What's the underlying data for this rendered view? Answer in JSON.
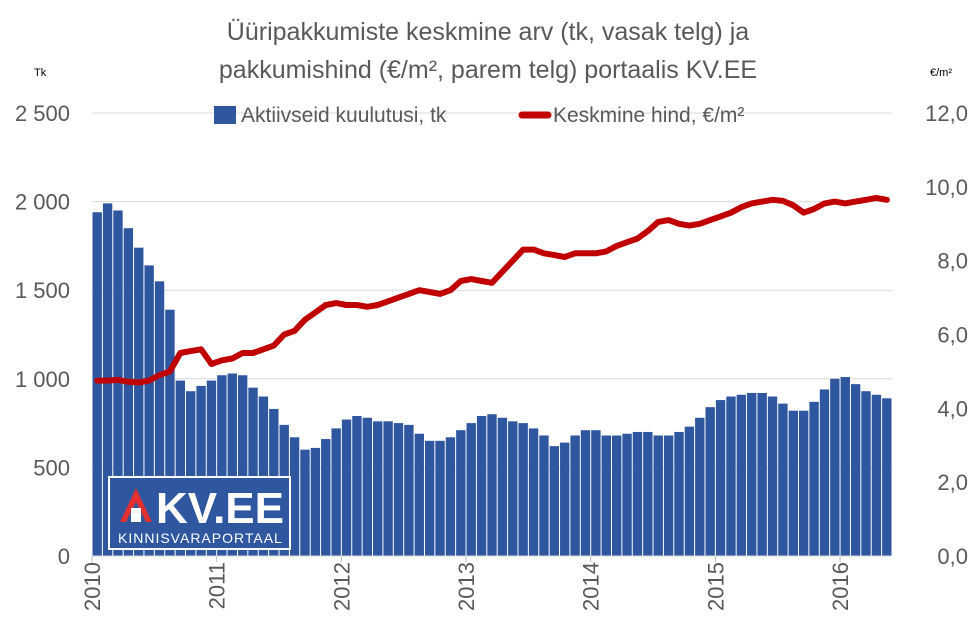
{
  "title_lines": [
    "Üüripakkumiste keskmine arv (tk, vasak telg) ja",
    "pakkumishind (€/m², parem telg) portaalis KV.EE"
  ],
  "left_axis_unit": "Tk",
  "right_axis_unit": "€/m²",
  "legend": {
    "bars_label": "Aktiivseid kuulutusi, tk",
    "line_label": "Keskmine hind, €/m²"
  },
  "logo": {
    "brand": "KV.EE",
    "tagline": "KINNISVARAPORTAAL"
  },
  "colors": {
    "bars": "#2E57A0",
    "line": "#C00000",
    "gridline": "#D9D9D9",
    "logo_bg": "#2E57A0",
    "logo_accent": "#E03030"
  },
  "chart_data": {
    "type": "bar",
    "combo": "bar + line (dual axis)",
    "title": "Üüripakkumiste keskmine arv (tk, vasak telg) ja pakkumishind (€/m², parem telg) portaalis KV.EE",
    "x_start": "2010-01",
    "x_end": "2016-07",
    "x_tick_labels": [
      "2010",
      "2011",
      "2012",
      "2013",
      "2014",
      "2015",
      "2016"
    ],
    "left_axis": {
      "ylim": [
        0,
        2500
      ],
      "ticks": [
        0,
        500,
        1000,
        1500,
        2000,
        2500
      ],
      "tick_labels": [
        "0",
        "500",
        "1 000",
        "1 500",
        "2 000",
        "2 500"
      ]
    },
    "right_axis": {
      "ylim": [
        0,
        12
      ],
      "ticks": [
        0,
        2,
        4,
        6,
        8,
        10,
        12
      ],
      "tick_labels": [
        "0,0",
        "2,0",
        "4,0",
        "6,0",
        "8,0",
        "10,0",
        "12,0"
      ]
    },
    "grid": true,
    "legend_position": "top",
    "series": [
      {
        "name": "Aktiivseid kuulutusi, tk",
        "kind": "bar",
        "axis": "left",
        "values": [
          1940,
          1990,
          1950,
          1850,
          1740,
          1640,
          1550,
          1390,
          990,
          930,
          960,
          990,
          1020,
          1030,
          1020,
          950,
          900,
          830,
          740,
          670,
          600,
          610,
          660,
          720,
          770,
          790,
          780,
          760,
          760,
          750,
          740,
          690,
          650,
          650,
          670,
          710,
          750,
          790,
          800,
          780,
          760,
          750,
          720,
          680,
          620,
          640,
          680,
          710,
          710,
          680,
          680,
          690,
          700,
          700,
          680,
          680,
          700,
          730,
          780,
          840,
          880,
          900,
          910,
          920,
          920,
          900,
          860,
          820,
          820,
          870,
          940,
          1000,
          1010,
          970,
          930,
          910,
          890
        ]
      },
      {
        "name": "Keskmine hind, €/m²",
        "kind": "line",
        "axis": "right",
        "values": [
          4.75,
          4.75,
          4.77,
          4.72,
          4.7,
          4.75,
          4.9,
          5.0,
          5.5,
          5.55,
          5.6,
          5.2,
          5.3,
          5.35,
          5.5,
          5.5,
          5.6,
          5.7,
          6.0,
          6.1,
          6.4,
          6.6,
          6.8,
          6.85,
          6.8,
          6.8,
          6.75,
          6.8,
          6.9,
          7.0,
          7.1,
          7.2,
          7.15,
          7.1,
          7.2,
          7.45,
          7.5,
          7.45,
          7.4,
          7.7,
          8.0,
          8.3,
          8.3,
          8.2,
          8.15,
          8.1,
          8.2,
          8.2,
          8.2,
          8.25,
          8.4,
          8.5,
          8.6,
          8.8,
          9.05,
          9.1,
          9.0,
          8.95,
          9.0,
          9.1,
          9.2,
          9.3,
          9.45,
          9.55,
          9.6,
          9.65,
          9.62,
          9.5,
          9.3,
          9.4,
          9.55,
          9.6,
          9.55,
          9.6,
          9.65,
          9.7,
          9.65
        ]
      }
    ]
  }
}
